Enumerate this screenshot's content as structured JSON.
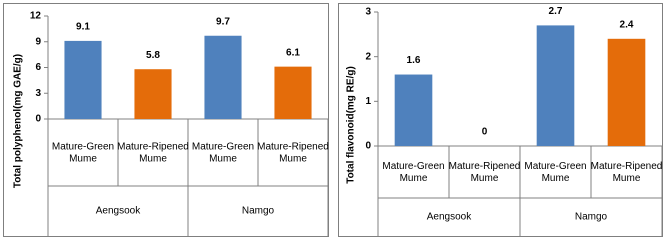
{
  "chart_data": [
    {
      "type": "bar",
      "y_label": "Total polyphenol(mg GAE/g)",
      "categories": [
        "Mature-Green Mume",
        "Mature-Ripened Mume",
        "Mature-Green Mume",
        "Mature-Ripened Mume"
      ],
      "groups": [
        "Aengsook",
        "Namgo"
      ],
      "values": [
        9.1,
        5.8,
        9.7,
        6.1
      ],
      "colors": [
        "#4f81bd",
        "#e46c0a",
        "#4f81bd",
        "#e46c0a"
      ],
      "ylim": [
        0,
        12
      ],
      "yticks": [
        0,
        3,
        6,
        9,
        12
      ],
      "grid": false
    },
    {
      "type": "bar",
      "y_label": "Total flavonoid(mg RE/g)",
      "categories": [
        "Mature-Green Mume",
        "Mature-Ripened Mume",
        "Mature-Green Mume",
        "Mature-Ripened Mume"
      ],
      "groups": [
        "Aengsook",
        "Namgo"
      ],
      "values": [
        1.6,
        0,
        2.7,
        2.4
      ],
      "colors": [
        "#4f81bd",
        "#e46c0a",
        "#4f81bd",
        "#e46c0a"
      ],
      "ylim": [
        0,
        3
      ],
      "yticks": [
        0,
        1,
        2,
        3
      ],
      "grid": false
    }
  ]
}
